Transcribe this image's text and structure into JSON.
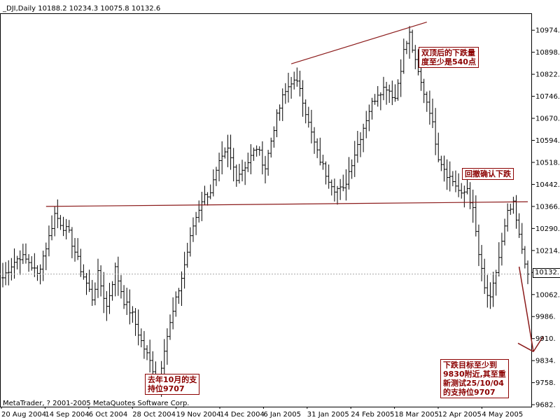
{
  "chart_data": {
    "type": "ohlc",
    "title": "_DJI,Daily  10188.2 10234.3 10075.8 10132.6",
    "y_ticks": [
      10974,
      10898,
      10822,
      10746,
      10670,
      10594,
      10518,
      10442,
      10366,
      10290,
      10214,
      10138,
      10062,
      9986,
      9910,
      9834,
      9758,
      9682
    ],
    "y_tick_labels": [
      "10974.",
      "10898.",
      "10822.",
      "10746.",
      "10670.",
      "10594.",
      "10518.",
      "10442.",
      "10366.",
      "10290.",
      "10214.",
      "10138.",
      "10062.",
      "9986.",
      "9910.",
      "9834.",
      "9758.",
      "9682."
    ],
    "ylim": [
      9675,
      11030
    ],
    "x_labels": [
      "20 Aug 2004",
      "14 Sep 2004",
      "6 Oct 2004",
      "28 Oct 2004",
      "19 Nov 2004",
      "14 Dec 2004",
      "6 Jan 2005",
      "31 Jan 2005",
      "24 Feb 2005",
      "18 Mar 2005",
      "12 Apr 2005",
      "4 May 2005"
    ],
    "current_price_label": "10132.",
    "current_price": 10132.6,
    "bar_count": 183,
    "anchors": [
      [
        0,
        10120
      ],
      [
        3,
        10165
      ],
      [
        6,
        10195
      ],
      [
        9,
        10175
      ],
      [
        12,
        10130
      ],
      [
        16,
        10260
      ],
      [
        18,
        10340
      ],
      [
        20,
        10310
      ],
      [
        23,
        10270
      ],
      [
        27,
        10150
      ],
      [
        31,
        10050
      ],
      [
        33,
        10130
      ],
      [
        36,
        10020
      ],
      [
        39,
        10150
      ],
      [
        42,
        10040
      ],
      [
        45,
        9990
      ],
      [
        48,
        9900
      ],
      [
        51,
        9830
      ],
      [
        54,
        9760
      ],
      [
        56,
        9880
      ],
      [
        59,
        10000
      ],
      [
        62,
        10120
      ],
      [
        66,
        10300
      ],
      [
        69,
        10390
      ],
      [
        72,
        10420
      ],
      [
        75,
        10510
      ],
      [
        78,
        10560
      ],
      [
        81,
        10470
      ],
      [
        85,
        10520
      ],
      [
        88,
        10570
      ],
      [
        91,
        10500
      ],
      [
        94,
        10640
      ],
      [
        97,
        10740
      ],
      [
        100,
        10800
      ],
      [
        103,
        10780
      ],
      [
        106,
        10650
      ],
      [
        109,
        10550
      ],
      [
        112,
        10480
      ],
      [
        115,
        10430
      ],
      [
        118,
        10420
      ],
      [
        121,
        10520
      ],
      [
        124,
        10610
      ],
      [
        127,
        10700
      ],
      [
        130,
        10760
      ],
      [
        133,
        10780
      ],
      [
        136,
        10740
      ],
      [
        139,
        10900
      ],
      [
        141,
        10960
      ],
      [
        143,
        10860
      ],
      [
        145,
        10790
      ],
      [
        148,
        10700
      ],
      [
        151,
        10540
      ],
      [
        154,
        10480
      ],
      [
        157,
        10440
      ],
      [
        159,
        10400
      ],
      [
        161,
        10430
      ],
      [
        163,
        10350
      ],
      [
        165,
        10200
      ],
      [
        167,
        10080
      ],
      [
        169,
        10040
      ],
      [
        171,
        10140
      ],
      [
        173,
        10240
      ],
      [
        175,
        10340
      ],
      [
        177,
        10370
      ],
      [
        179,
        10260
      ],
      [
        181,
        10180
      ],
      [
        182,
        10132.6
      ]
    ],
    "neckline": {
      "start": [
        15,
        10366
      ],
      "end": [
        182,
        10382
      ]
    },
    "top_trendline": {
      "start": [
        100,
        10858
      ],
      "end": [
        147,
        11002
      ]
    },
    "target_arrow": {
      "start": [
        179,
        10158
      ],
      "end": [
        186,
        9865
      ]
    },
    "grid": false
  },
  "copyright": "MetaTrader, ? 2001-2005 MetaQuotes Software Corp.",
  "annotations": {
    "double_top": "双顶后的下跌量\n度至少是540点",
    "retest": "回撤确认下跌",
    "support": "去年10月的支\n持位9707",
    "target": "下跌目标至少到\n9830附近,其至重\n新测试25/10/04\n的支持位9707"
  },
  "colors": {
    "bars": "#000000",
    "neckline": "#8b1a1a",
    "trendline": "#8b1a1a",
    "arrow": "#8b1a1a",
    "annotation_border": "#8b0000",
    "annotation_text": "#8b0000"
  }
}
